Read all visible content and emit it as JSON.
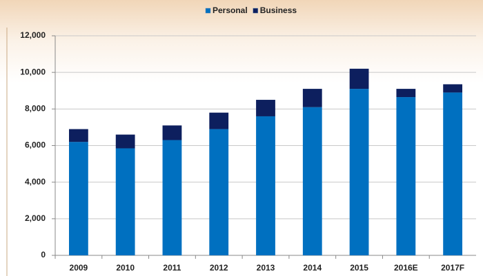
{
  "chart_data": {
    "type": "stacked_bar",
    "categories": [
      "2009",
      "2010",
      "2011",
      "2012",
      "2013",
      "2014",
      "2015",
      "2016E",
      "2017F"
    ],
    "series": [
      {
        "name": "Personal",
        "color": "#0070c0",
        "values": [
          6200,
          5850,
          6300,
          6900,
          7600,
          8100,
          9100,
          8650,
          8900
        ]
      },
      {
        "name": "Business",
        "color": "#0d1f5e",
        "values": [
          700,
          750,
          800,
          900,
          900,
          1000,
          1100,
          450,
          450
        ]
      }
    ],
    "ylim": [
      0,
      12000
    ],
    "yticks": [
      0,
      {
        "value": 2000,
        "label": "2,000"
      },
      {
        "value": 4000,
        "label": "4,000"
      },
      {
        "value": 6000,
        "label": "6,000"
      },
      {
        "value": 8000,
        "label": "8,000"
      },
      {
        "value": 10000,
        "label": "10,000"
      },
      {
        "value": 12000,
        "label": "12,000"
      }
    ],
    "grid": true,
    "legend": "top"
  }
}
